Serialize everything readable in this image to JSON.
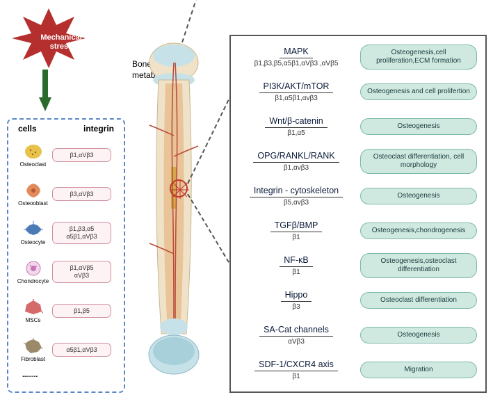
{
  "stress_label": "Mechanical stress",
  "bone_label": "Bone metabolism",
  "colors": {
    "star_fill": "#b62f2f",
    "arrow_fill": "#2a6a2a",
    "panel_border": "#5b87c7",
    "integrin_bg": "#fdf2f4",
    "integrin_border": "#d0909f",
    "effect_bg": "#cfe9e1",
    "effect_border": "#7db8aa",
    "marker": "#c0392b"
  },
  "cells_panel": {
    "header_left": "cells",
    "header_right": "integrin",
    "rows": [
      {
        "label": "Osteoclast",
        "integrin": "β1,αVβ3",
        "icon_color": "#e8c24a"
      },
      {
        "label": "Osteooblast",
        "integrin": "β3,αVβ3",
        "icon_color": "#e28a5a"
      },
      {
        "label": "Osteocyte",
        "integrin": "β1,β3,α5\nα5β1,αVβ3",
        "icon_color": "#4a7bb5"
      },
      {
        "label": "Chondrocyte",
        "integrin": "β1,αVβ5\nαVβ3",
        "icon_color": "#c874b8"
      },
      {
        "label": "MSCs",
        "integrin": "β1,β5",
        "icon_color": "#d56a6a"
      },
      {
        "label": "Fibroblast",
        "integrin": "α5β1,αVβ3",
        "icon_color": "#9a8a6a"
      }
    ],
    "dots": "........"
  },
  "pathways": [
    {
      "name": "MAPK",
      "integrins": "β1,β3,β5,α5β1,αVβ3 ,αVβ5",
      "effect": "Osteogenesis,cell proliferation,ECM formation"
    },
    {
      "name": "PI3K/AKT/mTOR",
      "integrins": "β1,α5β1,αvβ3",
      "effect": "Osteogenesis and cell prolifertion"
    },
    {
      "name": "Wnt/β-catenin",
      "integrins": "β1,α5",
      "effect": "Osteogenesis"
    },
    {
      "name": "OPG/RANKL/RANK",
      "integrins": "β1,αvβ3",
      "effect": "Osteoclast differentiation, cell morphology"
    },
    {
      "name": "Integrin - cytoskeleton",
      "integrins": "β5,αvβ3",
      "effect": "Osteogenesis"
    },
    {
      "name": "TGFβ/BMP",
      "integrins": "β1",
      "effect": "Osteogenesis,chondrogenesis"
    },
    {
      "name": "NF-κB",
      "integrins": "β1",
      "effect": "Osteogenesis,osteoclast differentiation"
    },
    {
      "name": "Hippo",
      "integrins": "β3",
      "effect": "Osteoclast differentiation"
    },
    {
      "name": "SA-Cat channels",
      "integrins": "αVβ3",
      "effect": "Osteogenesis"
    },
    {
      "name": "SDF-1/CXCR4 axis",
      "integrins": "β1",
      "effect": "Migration"
    }
  ]
}
